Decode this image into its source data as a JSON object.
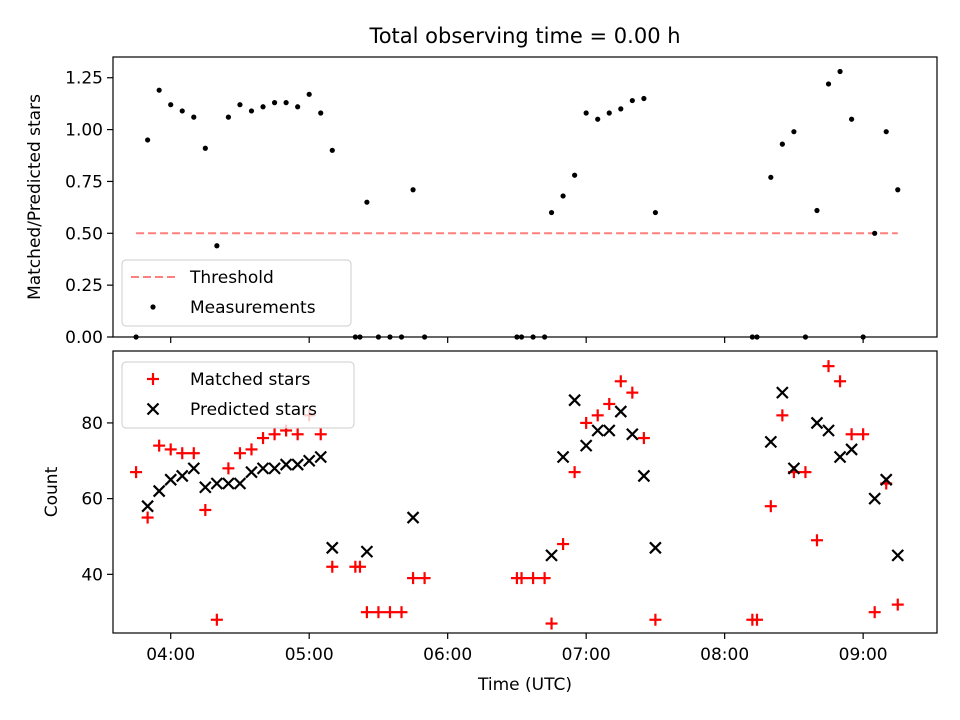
{
  "chart_data": [
    {
      "type": "scatter",
      "title": "Total observing time = 0.00 h",
      "ylabel": "Matched/Predicted stars",
      "xlabel": "",
      "xlim": [
        "03:35",
        "09:32"
      ],
      "ylim": [
        0,
        1.35
      ],
      "yticks": [
        0,
        0.25,
        0.5,
        0.75,
        1.0,
        1.25
      ],
      "ytick_labels": [
        "0.00",
        "0.25",
        "0.50",
        "0.75",
        "1.00",
        "1.25"
      ],
      "xticks": [
        "04:00",
        "05:00",
        "06:00",
        "07:00",
        "08:00",
        "09:00"
      ],
      "legend": {
        "position": "lower-left",
        "entries": [
          "Threshold",
          "Measurements"
        ]
      },
      "colors": {
        "threshold": "#ff7f7f",
        "measurements": "#000000"
      },
      "threshold": {
        "name": "Threshold",
        "value": 0.5,
        "x_start": "03:45",
        "x_end": "09:15"
      },
      "series": [
        {
          "name": "Measurements",
          "points": [
            [
              "03:45",
              0.0
            ],
            [
              "03:50",
              0.95
            ],
            [
              "03:55",
              1.19
            ],
            [
              "04:00",
              1.12
            ],
            [
              "04:05",
              1.09
            ],
            [
              "04:10",
              1.06
            ],
            [
              "04:15",
              0.91
            ],
            [
              "04:20",
              0.44
            ],
            [
              "04:25",
              1.06
            ],
            [
              "04:30",
              1.12
            ],
            [
              "04:35",
              1.09
            ],
            [
              "04:40",
              1.11
            ],
            [
              "04:45",
              1.13
            ],
            [
              "04:50",
              1.13
            ],
            [
              "04:55",
              1.11
            ],
            [
              "05:00",
              1.17
            ],
            [
              "05:05",
              1.08
            ],
            [
              "05:10",
              0.9
            ],
            [
              "05:20",
              0.0
            ],
            [
              "05:22",
              0.0
            ],
            [
              "05:25",
              0.65
            ],
            [
              "05:30",
              0.0
            ],
            [
              "05:35",
              0.0
            ],
            [
              "05:40",
              0.0
            ],
            [
              "05:45",
              0.71
            ],
            [
              "05:50",
              0.0
            ],
            [
              "06:30",
              0.0
            ],
            [
              "06:32",
              0.0
            ],
            [
              "06:37",
              0.0
            ],
            [
              "06:42",
              0.0
            ],
            [
              "06:45",
              0.6
            ],
            [
              "06:50",
              0.68
            ],
            [
              "06:55",
              0.78
            ],
            [
              "07:00",
              1.08
            ],
            [
              "07:05",
              1.05
            ],
            [
              "07:10",
              1.08
            ],
            [
              "07:15",
              1.1
            ],
            [
              "07:20",
              1.14
            ],
            [
              "07:25",
              1.15
            ],
            [
              "07:30",
              0.6
            ],
            [
              "08:12",
              0.0
            ],
            [
              "08:14",
              0.0
            ],
            [
              "08:20",
              0.77
            ],
            [
              "08:25",
              0.93
            ],
            [
              "08:30",
              0.99
            ],
            [
              "08:35",
              0.0
            ],
            [
              "08:40",
              0.61
            ],
            [
              "08:45",
              1.22
            ],
            [
              "08:50",
              1.28
            ],
            [
              "08:55",
              1.05
            ],
            [
              "09:00",
              0.0
            ],
            [
              "09:05",
              0.5
            ],
            [
              "09:10",
              0.99
            ],
            [
              "09:15",
              0.71
            ]
          ]
        }
      ]
    },
    {
      "type": "scatter",
      "title": "",
      "xlabel": "Time (UTC)",
      "ylabel": "Count",
      "xlim": [
        "03:35",
        "09:32"
      ],
      "ylim": [
        24.5,
        99
      ],
      "yticks": [
        40,
        60,
        80
      ],
      "xticks": [
        "04:00",
        "05:00",
        "06:00",
        "07:00",
        "08:00",
        "09:00"
      ],
      "legend": {
        "position": "upper-left",
        "entries": [
          "Matched stars",
          "Predicted stars"
        ]
      },
      "colors": {
        "matched": "#ff0000",
        "predicted": "#000000"
      },
      "series": [
        {
          "name": "Matched stars",
          "marker": "plus",
          "points": [
            [
              "03:45",
              67
            ],
            [
              "03:50",
              55
            ],
            [
              "03:55",
              74
            ],
            [
              "04:00",
              73
            ],
            [
              "04:05",
              72
            ],
            [
              "04:10",
              72
            ],
            [
              "04:15",
              57
            ],
            [
              "04:20",
              28
            ],
            [
              "04:25",
              68
            ],
            [
              "04:30",
              72
            ],
            [
              "04:35",
              73
            ],
            [
              "04:40",
              76
            ],
            [
              "04:45",
              77
            ],
            [
              "04:50",
              78
            ],
            [
              "04:55",
              77
            ],
            [
              "05:00",
              82
            ],
            [
              "05:05",
              77
            ],
            [
              "05:10",
              42
            ],
            [
              "05:20",
              42
            ],
            [
              "05:22",
              42
            ],
            [
              "05:25",
              30
            ],
            [
              "05:30",
              30
            ],
            [
              "05:35",
              30
            ],
            [
              "05:40",
              30
            ],
            [
              "05:45",
              39
            ],
            [
              "05:50",
              39
            ],
            [
              "06:30",
              39
            ],
            [
              "06:32",
              39
            ],
            [
              "06:37",
              39
            ],
            [
              "06:42",
              39
            ],
            [
              "06:45",
              27
            ],
            [
              "06:50",
              48
            ],
            [
              "06:55",
              67
            ],
            [
              "07:00",
              80
            ],
            [
              "07:05",
              82
            ],
            [
              "07:10",
              85
            ],
            [
              "07:15",
              91
            ],
            [
              "07:20",
              88
            ],
            [
              "07:25",
              76
            ],
            [
              "07:30",
              28
            ],
            [
              "08:12",
              28
            ],
            [
              "08:14",
              28
            ],
            [
              "08:20",
              58
            ],
            [
              "08:25",
              82
            ],
            [
              "08:30",
              67
            ],
            [
              "08:35",
              67
            ],
            [
              "08:40",
              49
            ],
            [
              "08:45",
              95
            ],
            [
              "08:50",
              91
            ],
            [
              "08:55",
              77
            ],
            [
              "09:00",
              77
            ],
            [
              "09:05",
              30
            ],
            [
              "09:10",
              64
            ],
            [
              "09:15",
              32
            ]
          ]
        },
        {
          "name": "Predicted stars",
          "marker": "x",
          "points": [
            [
              "03:50",
              58
            ],
            [
              "03:55",
              62
            ],
            [
              "04:00",
              65
            ],
            [
              "04:05",
              66
            ],
            [
              "04:10",
              68
            ],
            [
              "04:15",
              63
            ],
            [
              "04:20",
              64
            ],
            [
              "04:25",
              64
            ],
            [
              "04:30",
              64
            ],
            [
              "04:35",
              67
            ],
            [
              "04:40",
              68
            ],
            [
              "04:45",
              68
            ],
            [
              "04:50",
              69
            ],
            [
              "04:55",
              69
            ],
            [
              "05:00",
              70
            ],
            [
              "05:05",
              71
            ],
            [
              "05:10",
              47
            ],
            [
              "05:25",
              46
            ],
            [
              "05:45",
              55
            ],
            [
              "06:45",
              45
            ],
            [
              "06:50",
              71
            ],
            [
              "06:55",
              86
            ],
            [
              "07:00",
              74
            ],
            [
              "07:05",
              78
            ],
            [
              "07:10",
              78
            ],
            [
              "07:15",
              83
            ],
            [
              "07:20",
              77
            ],
            [
              "07:25",
              66
            ],
            [
              "07:30",
              47
            ],
            [
              "08:20",
              75
            ],
            [
              "08:25",
              88
            ],
            [
              "08:30",
              68
            ],
            [
              "08:40",
              80
            ],
            [
              "08:45",
              78
            ],
            [
              "08:50",
              71
            ],
            [
              "08:55",
              73
            ],
            [
              "09:05",
              60
            ],
            [
              "09:10",
              65
            ],
            [
              "09:15",
              45
            ]
          ]
        }
      ]
    }
  ]
}
